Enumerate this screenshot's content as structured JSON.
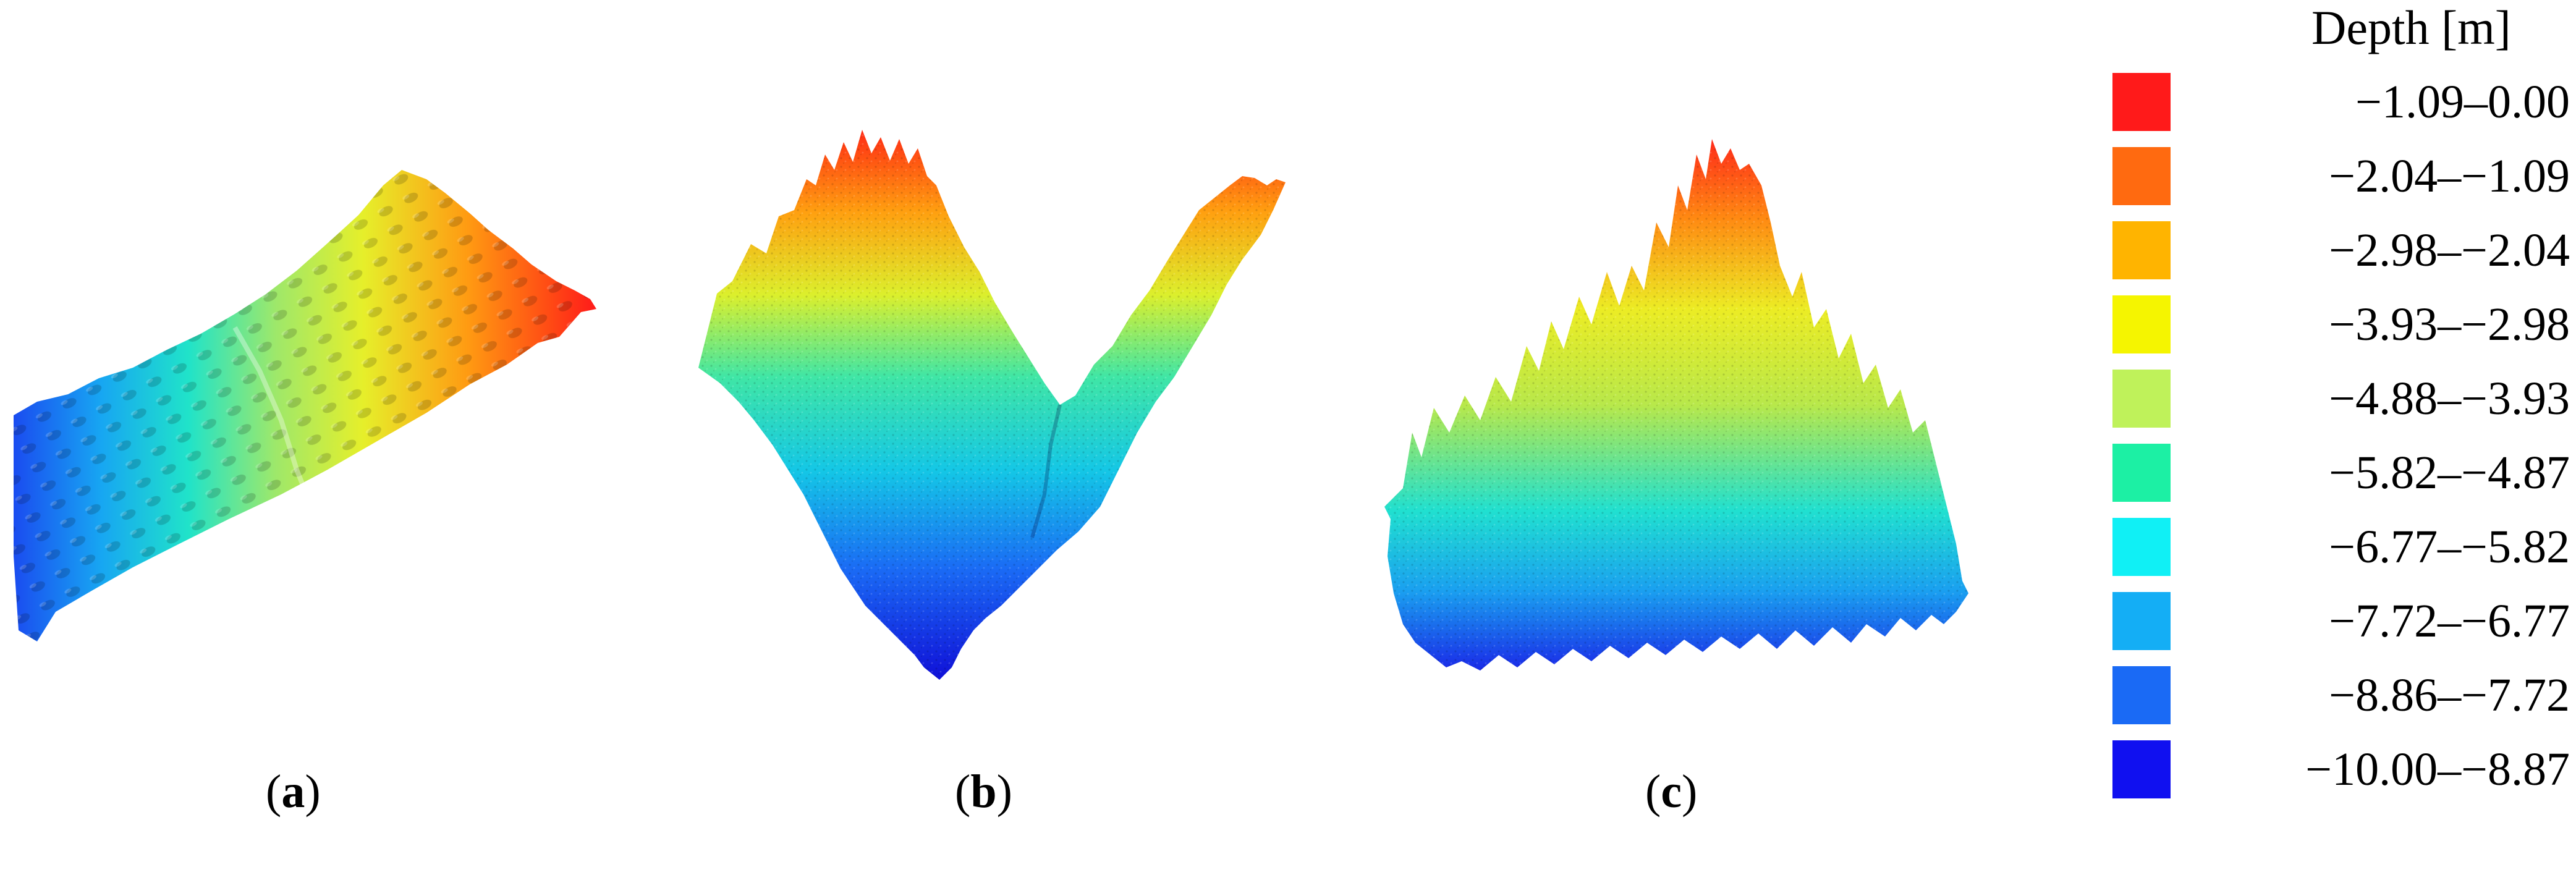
{
  "legend": {
    "title": "Depth [m]",
    "items": [
      {
        "label": "−1.09–0.00",
        "color": "#ff1a1a"
      },
      {
        "label": "−2.04–−1.09",
        "color": "#ff6a10"
      },
      {
        "label": "−2.98–−2.04",
        "color": "#ffb400"
      },
      {
        "label": "−3.93–−2.98",
        "color": "#f5f500"
      },
      {
        "label": "−4.88–−3.93",
        "color": "#bff25a"
      },
      {
        "label": "−5.82–−4.87",
        "color": "#1cf0a4"
      },
      {
        "label": "−6.77–−5.82",
        "color": "#10f0f5"
      },
      {
        "label": "−7.72–−6.77",
        "color": "#14aef5"
      },
      {
        "label": "−8.86–−7.72",
        "color": "#1a6af5"
      },
      {
        "label": "−10.00–−8.87",
        "color": "#1010f0"
      }
    ]
  },
  "panels": [
    {
      "id": "a",
      "caption_letter": "a"
    },
    {
      "id": "b",
      "caption_letter": "b"
    },
    {
      "id": "c",
      "caption_letter": "c"
    }
  ]
}
